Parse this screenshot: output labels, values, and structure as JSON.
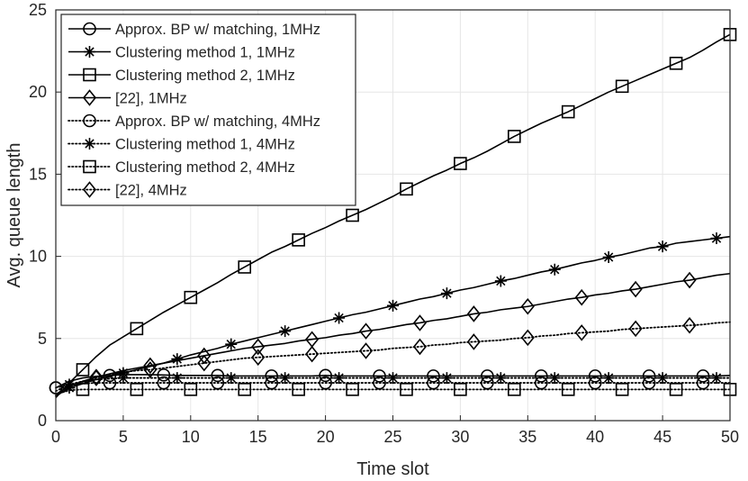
{
  "chart_data": {
    "type": "line",
    "title": "",
    "xlabel": "Time slot",
    "ylabel": "Avg. queue length",
    "xlim": [
      0,
      50
    ],
    "ylim": [
      0,
      25
    ],
    "xticks": [
      0,
      5,
      10,
      15,
      20,
      25,
      30,
      35,
      40,
      45,
      50
    ],
    "yticks": [
      0,
      5,
      10,
      15,
      20,
      25
    ],
    "grid": true,
    "legend_position": "top-left",
    "series": [
      {
        "name": "Approx. BP w/ matching, 1MHz",
        "marker": "circle",
        "line": "solid",
        "marker_every": 4,
        "marker_offset": 0,
        "values": [
          2.0,
          2.4,
          2.6,
          2.7,
          2.75,
          2.8,
          2.8,
          2.8,
          2.78,
          2.75,
          2.75,
          2.75,
          2.75,
          2.72,
          2.72,
          2.72,
          2.72,
          2.72,
          2.72,
          2.72,
          2.75,
          2.72,
          2.72,
          2.72,
          2.72,
          2.72,
          2.72,
          2.72,
          2.72,
          2.72,
          2.72,
          2.72,
          2.72,
          2.72,
          2.72,
          2.72,
          2.72,
          2.72,
          2.72,
          2.72,
          2.72,
          2.72,
          2.72,
          2.72,
          2.72,
          2.72,
          2.72,
          2.72,
          2.72,
          2.72,
          2.75
        ]
      },
      {
        "name": "Clustering method 1, 1MHz",
        "marker": "asterisk",
        "line": "solid",
        "marker_every": 4,
        "marker_offset": 1,
        "values": [
          1.5,
          2.0,
          2.25,
          2.5,
          2.7,
          2.9,
          3.1,
          3.3,
          3.5,
          3.75,
          4.0,
          4.2,
          4.4,
          4.65,
          4.85,
          5.05,
          5.25,
          5.45,
          5.65,
          5.85,
          6.05,
          6.25,
          6.45,
          6.6,
          6.8,
          7.0,
          7.2,
          7.4,
          7.55,
          7.75,
          7.95,
          8.1,
          8.3,
          8.5,
          8.65,
          8.85,
          9.05,
          9.2,
          9.4,
          9.6,
          9.75,
          9.95,
          10.1,
          10.3,
          10.5,
          10.6,
          10.8,
          10.9,
          11.0,
          11.1,
          11.2
        ]
      },
      {
        "name": "Clustering method 2, 1MHz",
        "marker": "square",
        "line": "solid",
        "marker_every": 4,
        "marker_offset": 2,
        "values": [
          1.4,
          2.3,
          3.1,
          3.9,
          4.6,
          5.1,
          5.6,
          6.1,
          6.6,
          7.05,
          7.5,
          7.95,
          8.4,
          8.9,
          9.35,
          9.8,
          10.25,
          10.6,
          11.0,
          11.4,
          11.75,
          12.15,
          12.5,
          12.85,
          13.25,
          13.65,
          14.1,
          14.5,
          14.9,
          15.25,
          15.65,
          16.0,
          16.4,
          16.85,
          17.3,
          17.7,
          18.1,
          18.45,
          18.8,
          19.2,
          19.6,
          20.0,
          20.35,
          20.7,
          21.05,
          21.4,
          21.75,
          22.1,
          22.55,
          23.05,
          23.5
        ]
      },
      {
        "name": "[22], 1MHz",
        "marker": "diamond",
        "line": "solid",
        "marker_every": 4,
        "marker_offset": 3,
        "values": [
          1.6,
          2.1,
          2.4,
          2.65,
          2.85,
          3.05,
          3.2,
          3.35,
          3.5,
          3.65,
          3.8,
          3.95,
          4.1,
          4.25,
          4.4,
          4.5,
          4.6,
          4.7,
          4.85,
          4.95,
          5.05,
          5.2,
          5.3,
          5.45,
          5.55,
          5.7,
          5.85,
          5.95,
          6.1,
          6.2,
          6.35,
          6.5,
          6.6,
          6.75,
          6.85,
          6.95,
          7.1,
          7.25,
          7.4,
          7.5,
          7.65,
          7.75,
          7.9,
          8.0,
          8.15,
          8.3,
          8.45,
          8.55,
          8.7,
          8.85,
          8.95
        ]
      },
      {
        "name": "Approx. BP w/ matching, 4MHz",
        "marker": "circle",
        "line": "dotted",
        "marker_every": 4,
        "marker_offset": 0,
        "values": [
          2.0,
          2.2,
          2.25,
          2.3,
          2.3,
          2.3,
          2.3,
          2.3,
          2.3,
          2.3,
          2.3,
          2.3,
          2.3,
          2.3,
          2.3,
          2.3,
          2.3,
          2.3,
          2.3,
          2.3,
          2.3,
          2.3,
          2.3,
          2.3,
          2.3,
          2.3,
          2.3,
          2.3,
          2.3,
          2.3,
          2.3,
          2.3,
          2.3,
          2.3,
          2.3,
          2.3,
          2.3,
          2.3,
          2.3,
          2.3,
          2.3,
          2.3,
          2.3,
          2.3,
          2.3,
          2.3,
          2.3,
          2.3,
          2.3,
          2.3,
          2.3
        ]
      },
      {
        "name": "Clustering method 1, 4MHz",
        "marker": "asterisk",
        "line": "dotted",
        "marker_every": 4,
        "marker_offset": 1,
        "values": [
          1.8,
          2.2,
          2.4,
          2.5,
          2.55,
          2.6,
          2.6,
          2.6,
          2.6,
          2.6,
          2.6,
          2.6,
          2.6,
          2.6,
          2.6,
          2.6,
          2.6,
          2.6,
          2.6,
          2.6,
          2.6,
          2.6,
          2.6,
          2.6,
          2.6,
          2.6,
          2.6,
          2.6,
          2.6,
          2.6,
          2.6,
          2.6,
          2.6,
          2.6,
          2.6,
          2.6,
          2.6,
          2.6,
          2.6,
          2.6,
          2.6,
          2.6,
          2.6,
          2.6,
          2.6,
          2.6,
          2.6,
          2.6,
          2.6,
          2.6,
          2.6
        ]
      },
      {
        "name": "Clustering method 2, 4MHz",
        "marker": "square",
        "line": "dotted",
        "marker_every": 4,
        "marker_offset": 2,
        "values": [
          1.6,
          1.85,
          1.9,
          1.9,
          1.9,
          1.9,
          1.9,
          1.9,
          1.9,
          1.9,
          1.9,
          1.9,
          1.9,
          1.9,
          1.9,
          1.9,
          1.9,
          1.9,
          1.9,
          1.9,
          1.9,
          1.9,
          1.9,
          1.9,
          1.9,
          1.9,
          1.9,
          1.9,
          1.9,
          1.9,
          1.9,
          1.9,
          1.9,
          1.9,
          1.9,
          1.9,
          1.9,
          1.9,
          1.9,
          1.9,
          1.9,
          1.9,
          1.9,
          1.9,
          1.9,
          1.9,
          1.9,
          1.9,
          1.9,
          1.9,
          1.9
        ]
      },
      {
        "name": "[22], 4MHz",
        "marker": "diamond",
        "line": "dotted",
        "marker_every": 4,
        "marker_offset": 3,
        "values": [
          1.5,
          2.0,
          2.3,
          2.6,
          2.8,
          2.95,
          3.05,
          3.1,
          3.2,
          3.3,
          3.4,
          3.5,
          3.6,
          3.7,
          3.8,
          3.85,
          3.9,
          3.95,
          4.0,
          4.05,
          4.1,
          4.15,
          4.2,
          4.25,
          4.3,
          4.4,
          4.45,
          4.5,
          4.6,
          4.65,
          4.75,
          4.8,
          4.85,
          4.9,
          5.0,
          5.05,
          5.15,
          5.2,
          5.3,
          5.35,
          5.4,
          5.45,
          5.55,
          5.6,
          5.65,
          5.7,
          5.75,
          5.8,
          5.85,
          5.95,
          6.0
        ]
      }
    ]
  }
}
